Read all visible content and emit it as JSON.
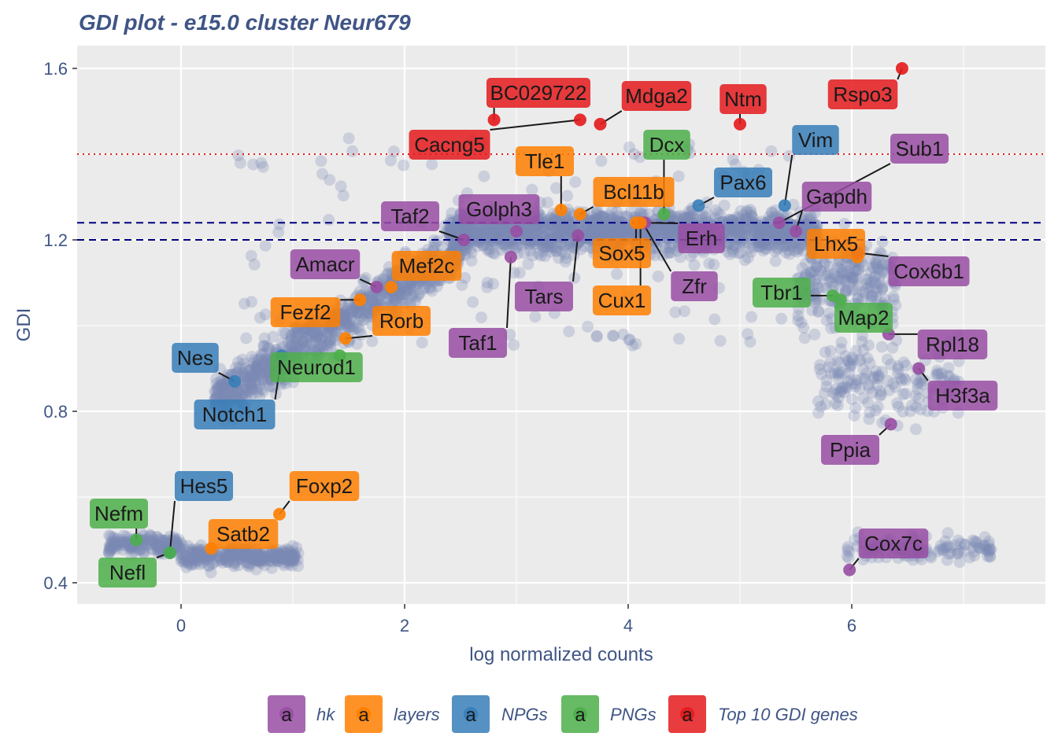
{
  "chart_data": {
    "type": "scatter",
    "title": "GDI plot - e15.0 cluster Neur679",
    "xlabel": "log normalized counts",
    "ylabel": "GDI",
    "xlim": [
      -0.92,
      7.7
    ],
    "ylim": [
      0.35,
      1.66
    ],
    "x_ticks": [
      0,
      2,
      4,
      6
    ],
    "y_ticks": [
      0.4,
      0.8,
      1.2,
      1.6
    ],
    "x_tick_labels": [
      "0",
      "2",
      "4",
      "6"
    ],
    "y_tick_labels": [
      "0.4",
      "0.8",
      "1.2",
      "1.6"
    ],
    "grid": true,
    "legend_position": "bottom",
    "reference_lines": [
      {
        "y": 1.4,
        "style": "dotted",
        "color": "#e41a1c"
      },
      {
        "y": 1.24,
        "style": "dashed",
        "color": "#000080"
      },
      {
        "y": 1.2,
        "style": "dashed",
        "color": "#000080"
      }
    ],
    "categories": [
      {
        "name": "hk",
        "color": "#984ea3"
      },
      {
        "name": "layers",
        "color": "#ff7f00"
      },
      {
        "name": "NPGs",
        "color": "#377eb8"
      },
      {
        "name": "PNGs",
        "color": "#4daf4a"
      },
      {
        "name": "Top 10 GDI genes",
        "color": "#e41a1c"
      }
    ],
    "highlighted_genes": [
      {
        "gene": "BC029722",
        "x": 2.8,
        "y": 1.48,
        "category": "Top 10 GDI genes"
      },
      {
        "gene": "Mdga2",
        "x": 3.75,
        "y": 1.47,
        "category": "Top 10 GDI genes"
      },
      {
        "gene": "Ntm",
        "x": 5.0,
        "y": 1.47,
        "category": "Top 10 GDI genes"
      },
      {
        "gene": "Rspo3",
        "x": 6.45,
        "y": 1.6,
        "category": "Top 10 GDI genes"
      },
      {
        "gene": "Cacng5",
        "x": 3.57,
        "y": 1.48,
        "category": "Top 10 GDI genes"
      },
      {
        "gene": "Dcx",
        "x": 4.32,
        "y": 1.26,
        "category": "PNGs"
      },
      {
        "gene": "Vim",
        "x": 5.4,
        "y": 1.28,
        "category": "NPGs"
      },
      {
        "gene": "Tle1",
        "x": 3.4,
        "y": 1.27,
        "category": "layers"
      },
      {
        "gene": "Sub1",
        "x": 5.35,
        "y": 1.24,
        "category": "hk"
      },
      {
        "gene": "Pax6",
        "x": 4.63,
        "y": 1.28,
        "category": "NPGs"
      },
      {
        "gene": "Bcl11b",
        "x": 3.57,
        "y": 1.26,
        "category": "layers"
      },
      {
        "gene": "Gapdh",
        "x": 5.5,
        "y": 1.22,
        "category": "hk"
      },
      {
        "gene": "Taf2",
        "x": 2.53,
        "y": 1.2,
        "category": "hk"
      },
      {
        "gene": "Golph3",
        "x": 3.0,
        "y": 1.22,
        "category": "hk"
      },
      {
        "gene": "Erh",
        "x": 4.15,
        "y": 1.24,
        "category": "hk"
      },
      {
        "gene": "Lhx5",
        "x": 6.05,
        "y": 1.16,
        "category": "layers"
      },
      {
        "gene": "Sox5",
        "x": 4.07,
        "y": 1.24,
        "category": "layers"
      },
      {
        "gene": "Amacr",
        "x": 1.75,
        "y": 1.09,
        "category": "hk"
      },
      {
        "gene": "Mef2c",
        "x": 1.88,
        "y": 1.09,
        "category": "layers"
      },
      {
        "gene": "Cox6b1",
        "x": 6.05,
        "y": 1.17,
        "category": "hk"
      },
      {
        "gene": "Zfr",
        "x": 4.13,
        "y": 1.24,
        "category": "hk"
      },
      {
        "gene": "Tars",
        "x": 3.55,
        "y": 1.21,
        "category": "hk"
      },
      {
        "gene": "Tbr1",
        "x": 5.83,
        "y": 1.07,
        "category": "PNGs"
      },
      {
        "gene": "Cux1",
        "x": 4.11,
        "y": 1.24,
        "category": "layers"
      },
      {
        "gene": "Fezf2",
        "x": 1.6,
        "y": 1.06,
        "category": "layers"
      },
      {
        "gene": "Map2",
        "x": 5.9,
        "y": 1.06,
        "category": "PNGs"
      },
      {
        "gene": "Rorb",
        "x": 1.47,
        "y": 0.97,
        "category": "layers"
      },
      {
        "gene": "Taf1",
        "x": 2.95,
        "y": 1.16,
        "category": "hk"
      },
      {
        "gene": "Rpl18",
        "x": 6.33,
        "y": 0.98,
        "category": "hk"
      },
      {
        "gene": "Nes",
        "x": 0.48,
        "y": 0.87,
        "category": "NPGs"
      },
      {
        "gene": "Neurod1",
        "x": 1.42,
        "y": 0.93,
        "category": "PNGs"
      },
      {
        "gene": "H3f3a",
        "x": 6.6,
        "y": 0.9,
        "category": "hk"
      },
      {
        "gene": "Notch1",
        "x": 0.9,
        "y": 0.93,
        "category": "NPGs"
      },
      {
        "gene": "Ppia",
        "x": 6.35,
        "y": 0.77,
        "category": "hk"
      },
      {
        "gene": "Hes5",
        "x": -0.1,
        "y": 0.47,
        "category": "NPGs"
      },
      {
        "gene": "Foxp2",
        "x": 0.88,
        "y": 0.56,
        "category": "layers"
      },
      {
        "gene": "Nefm",
        "x": -0.4,
        "y": 0.5,
        "category": "PNGs"
      },
      {
        "gene": "Satb2",
        "x": 0.27,
        "y": 0.48,
        "category": "layers"
      },
      {
        "gene": "Cox7c",
        "x": 5.98,
        "y": 0.43,
        "category": "hk"
      },
      {
        "gene": "Nefl",
        "x": -0.1,
        "y": 0.47,
        "category": "PNGs"
      }
    ]
  },
  "legend": {
    "key_glyph": "a",
    "items": [
      "hk",
      "layers",
      "NPGs",
      "PNGs",
      "Top 10 GDI genes"
    ]
  }
}
